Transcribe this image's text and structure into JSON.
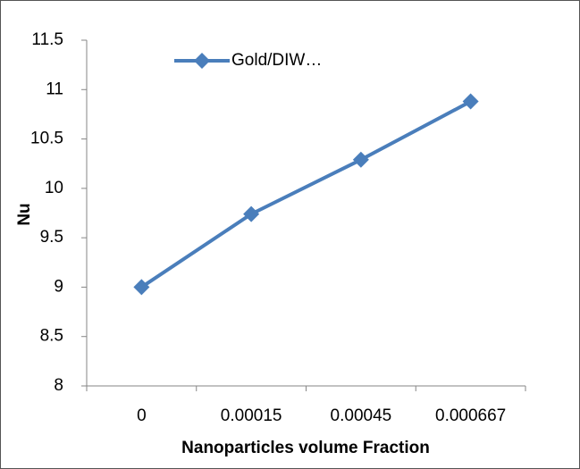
{
  "chart_data": {
    "type": "line",
    "x_label": "Nanoparticles volume Fraction",
    "y_label": "Nu",
    "categories": [
      "0",
      "0.00015",
      "0.00045",
      "0.000667"
    ],
    "series": [
      {
        "name": "Gold/DIW…",
        "color": "#4a7ebb",
        "values": [
          9,
          9.74,
          10.29,
          10.88
        ]
      }
    ],
    "ylim": [
      8,
      11.5
    ],
    "yticks": [
      8,
      8.5,
      9,
      9.5,
      10,
      10.5,
      11,
      11.5
    ],
    "grid": false,
    "legend": "top-left"
  }
}
